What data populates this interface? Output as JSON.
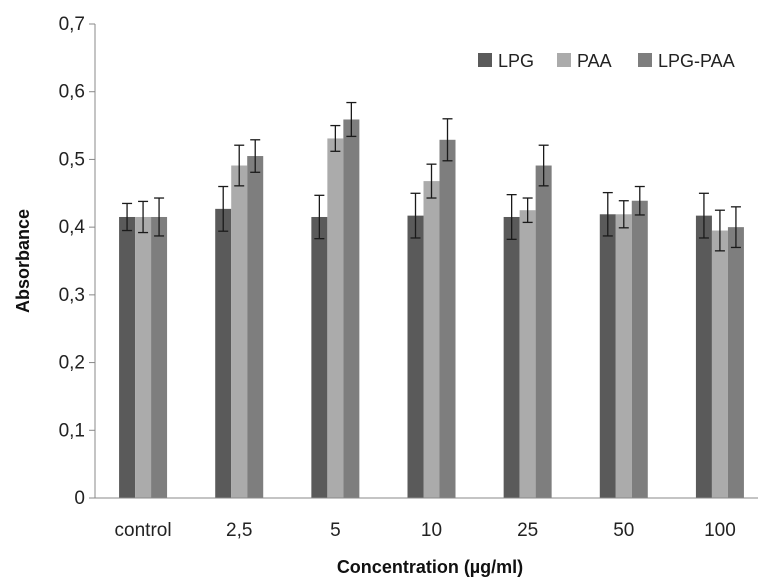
{
  "chart_data": {
    "type": "bar",
    "title": "",
    "xlabel": "Concentration (µg/ml)",
    "ylabel": "Absorbance",
    "categories": [
      "control",
      "2,5",
      "5",
      "10",
      "25",
      "50",
      "100"
    ],
    "ylim": [
      0,
      0.7
    ],
    "yticks": [
      0,
      0.1,
      0.2,
      0.3,
      0.4,
      0.5,
      0.6,
      0.7
    ],
    "ytick_labels": [
      "0",
      "0,1",
      "0,2",
      "0,3",
      "0,4",
      "0,5",
      "0,6",
      "0,7"
    ],
    "grid": false,
    "legend_position": "top-right",
    "series": [
      {
        "name": "LPG",
        "color": "#5a5a5a",
        "values": [
          0.415,
          0.427,
          0.415,
          0.417,
          0.415,
          0.419,
          0.417
        ],
        "errors": [
          0.02,
          0.033,
          0.032,
          0.033,
          0.033,
          0.032,
          0.033
        ]
      },
      {
        "name": "PAA",
        "color": "#ababab",
        "values": [
          0.415,
          0.491,
          0.531,
          0.468,
          0.425,
          0.419,
          0.395
        ],
        "errors": [
          0.023,
          0.03,
          0.019,
          0.025,
          0.018,
          0.02,
          0.03
        ]
      },
      {
        "name": "LPG-PAA",
        "color": "#7e7e7e",
        "values": [
          0.415,
          0.505,
          0.559,
          0.529,
          0.491,
          0.439,
          0.4
        ],
        "errors": [
          0.028,
          0.024,
          0.025,
          0.031,
          0.03,
          0.021,
          0.03
        ]
      }
    ]
  }
}
